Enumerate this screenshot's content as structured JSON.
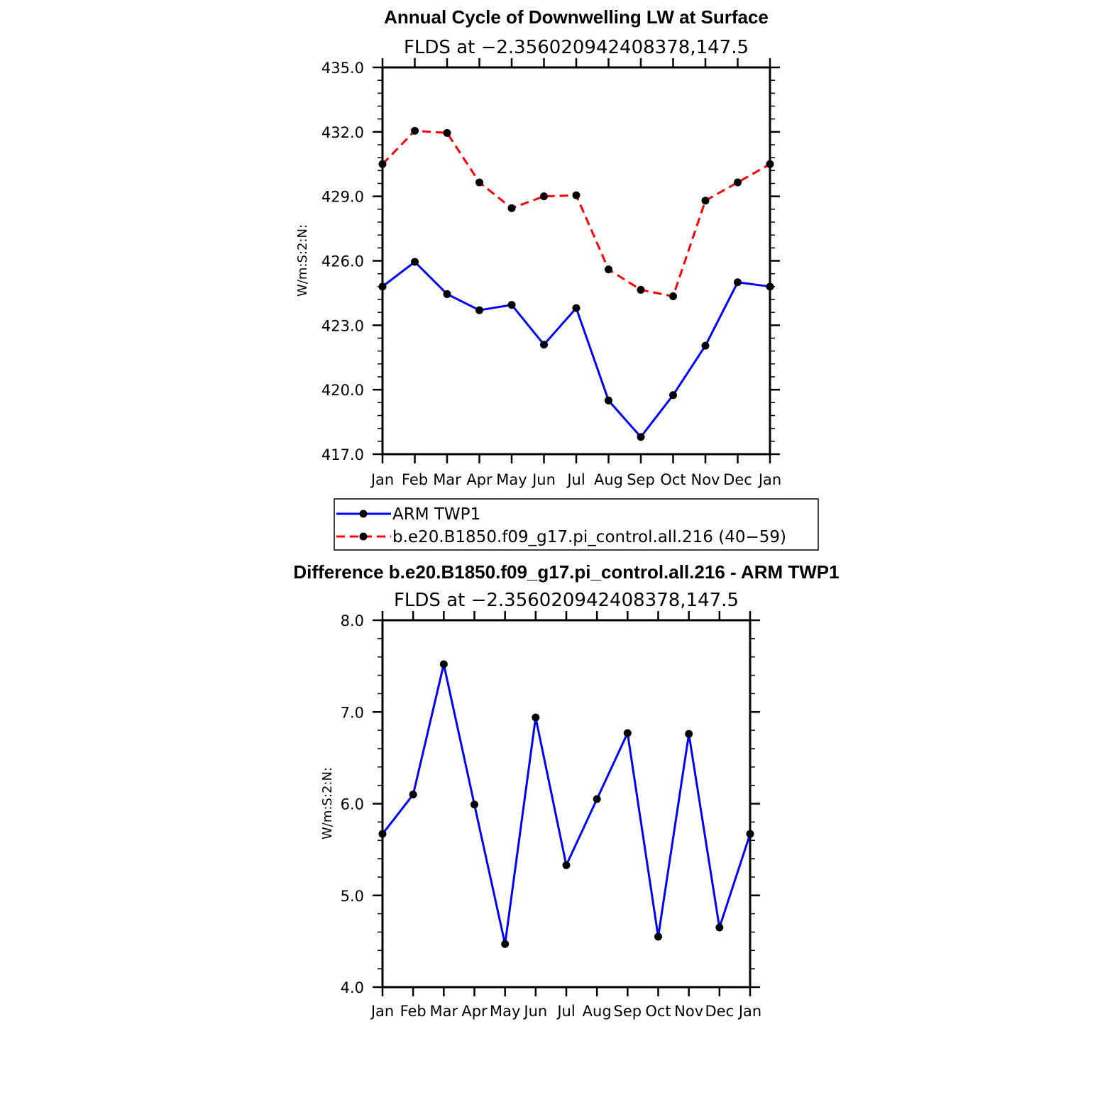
{
  "chart_data": [
    {
      "type": "line",
      "title": "Annual Cycle of Downwelling LW at Surface",
      "subtitle": "FLDS at −2.356020942408378,147.5",
      "ylabel": "W/m:S:2:N:",
      "xlabel": "",
      "categories": [
        "Jan",
        "Feb",
        "Mar",
        "Apr",
        "May",
        "Jun",
        "Jul",
        "Aug",
        "Sep",
        "Oct",
        "Nov",
        "Dec",
        "Jan"
      ],
      "ylim": [
        417.0,
        435.0
      ],
      "yticks": [
        "417.0",
        "420.0",
        "423.0",
        "426.0",
        "429.0",
        "432.0",
        "435.0"
      ],
      "series": [
        {
          "name": "ARM TWP1",
          "color": "#0000ff",
          "dash": "solid",
          "values": [
            424.8,
            425.95,
            424.45,
            423.7,
            423.95,
            422.1,
            423.8,
            419.5,
            417.8,
            419.75,
            422.05,
            425.0,
            424.8
          ]
        },
        {
          "name": "b.e20.B1850.f09_g17.pi_control.all.216 (40−59)",
          "color": "#ff0000",
          "dash": "dashed",
          "values": [
            430.5,
            432.05,
            431.95,
            429.65,
            428.45,
            429.0,
            429.05,
            425.6,
            424.65,
            424.35,
            428.8,
            429.65,
            430.5
          ]
        }
      ],
      "legend": "below",
      "grid": false
    },
    {
      "type": "line",
      "title": "Difference b.e20.B1850.f09_g17.pi_control.all.216 - ARM TWP1",
      "subtitle": "FLDS at −2.356020942408378,147.5",
      "ylabel": "W/m:S:2:N:",
      "xlabel": "",
      "categories": [
        "Jan",
        "Feb",
        "Mar",
        "Apr",
        "May",
        "Jun",
        "Jul",
        "Aug",
        "Sep",
        "Oct",
        "Nov",
        "Dec",
        "Jan"
      ],
      "ylim": [
        4.0,
        8.0
      ],
      "yticks": [
        "4.0",
        "5.0",
        "6.0",
        "7.0",
        "8.0"
      ],
      "series": [
        {
          "color": "#0000ff",
          "dash": "solid",
          "values": [
            5.67,
            6.1,
            7.52,
            5.99,
            4.47,
            6.94,
            5.33,
            6.05,
            6.77,
            4.55,
            6.76,
            4.65,
            5.67
          ]
        }
      ],
      "grid": false
    }
  ]
}
